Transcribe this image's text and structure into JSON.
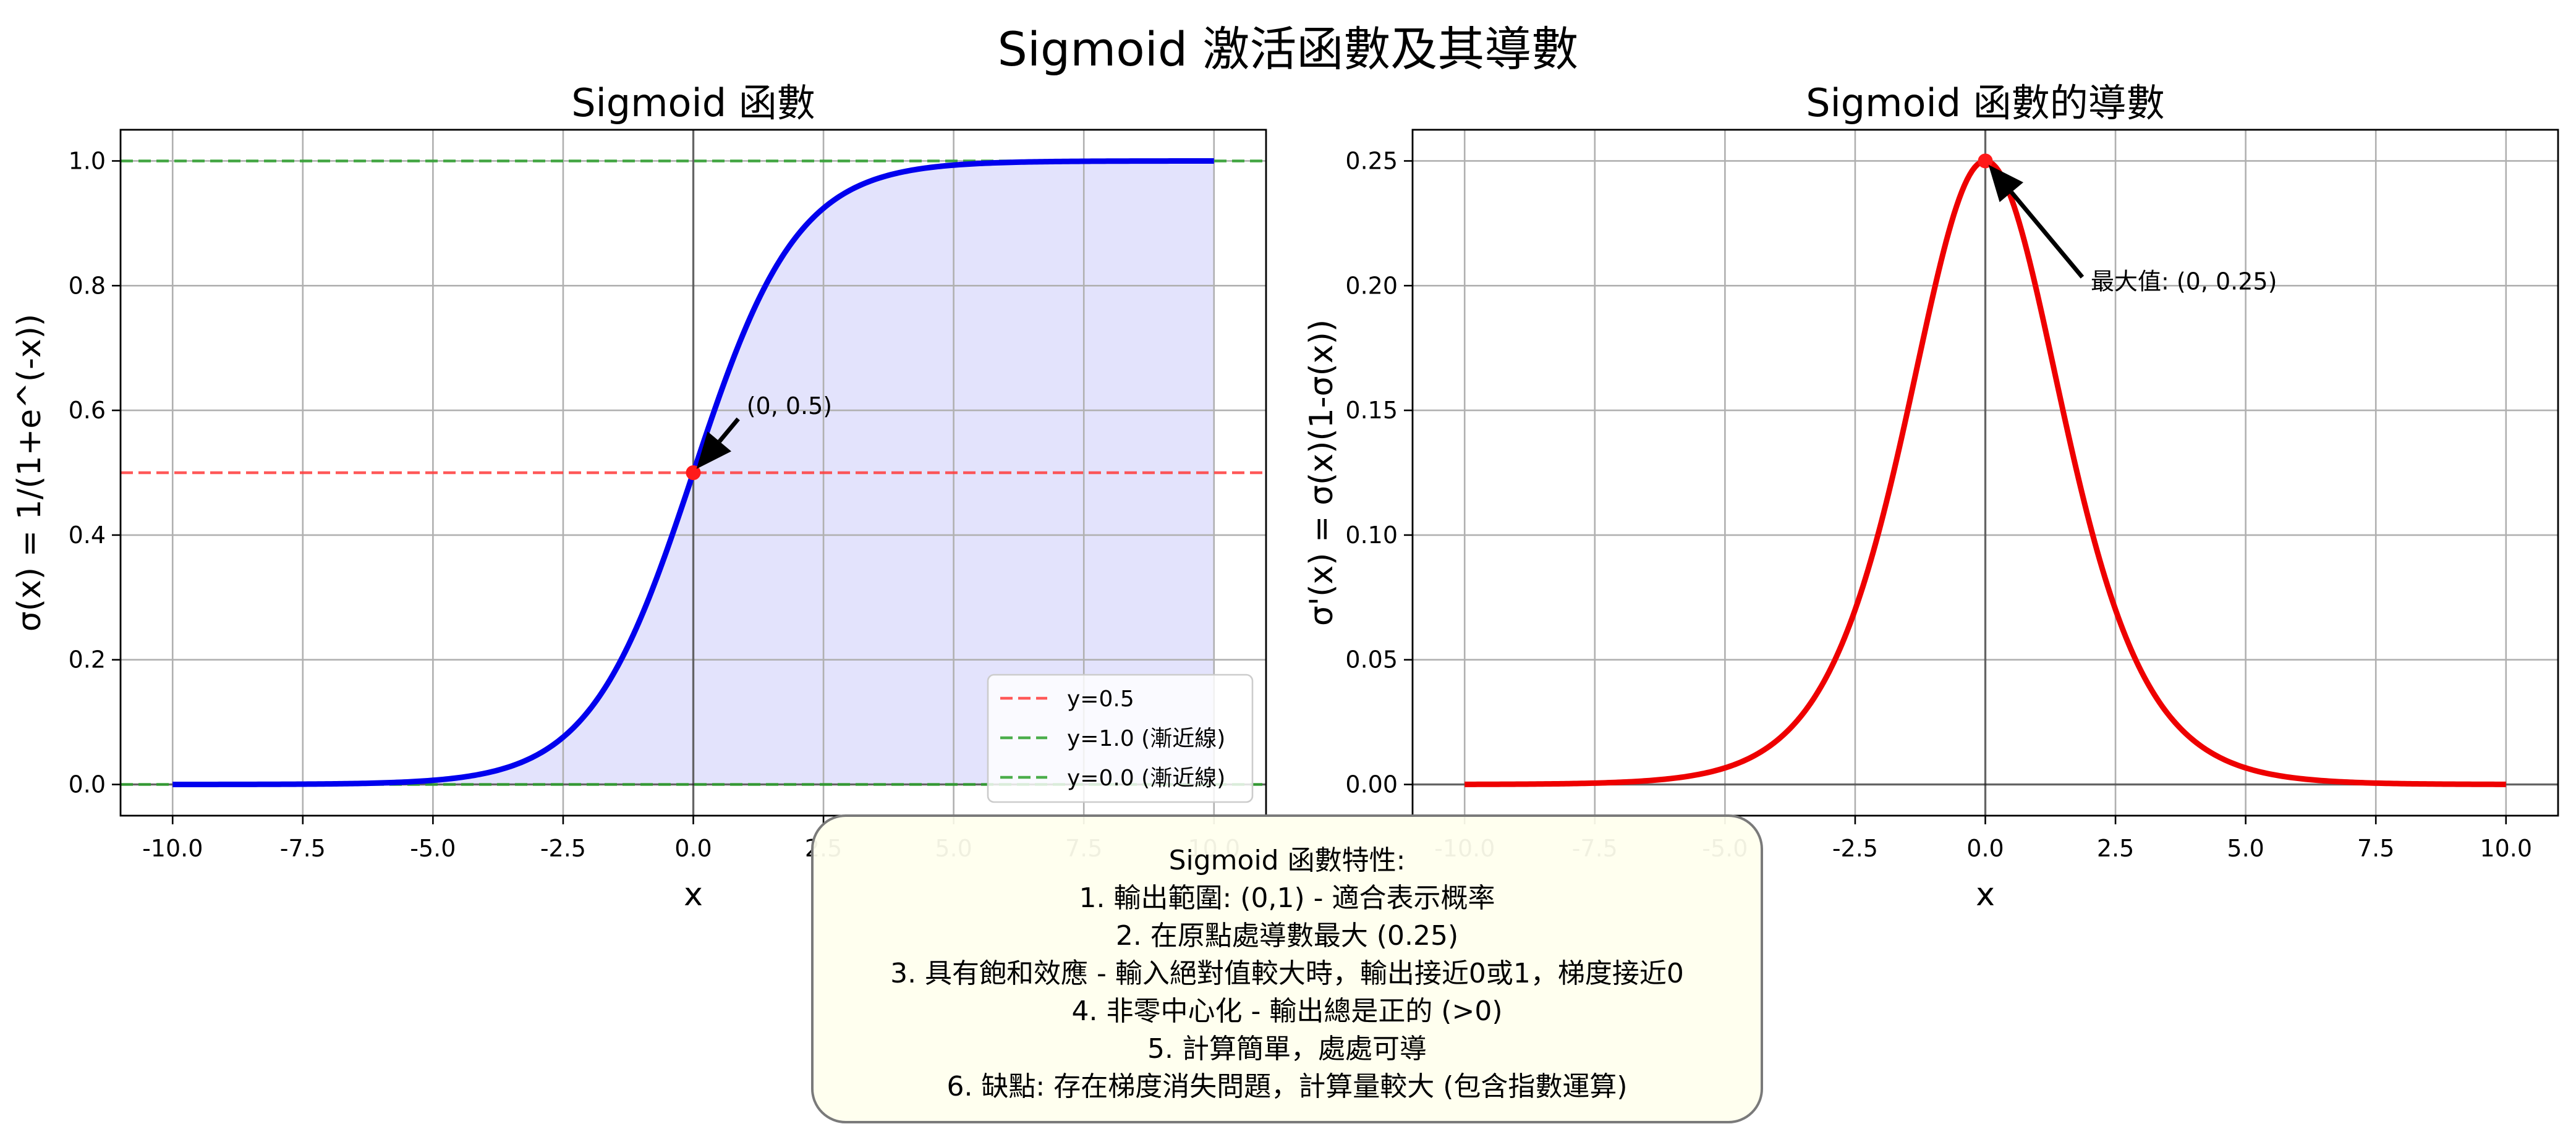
{
  "suptitle": "Sigmoid 激活函數及其導數",
  "colors": {
    "sigmoid_line": "#0000ee",
    "sigmoid_fill": "#e3e3fc",
    "derivative_line": "#ee0000",
    "ref_red": "#ff3b3b",
    "ref_green": "#2ca02c",
    "grid": "#b0b0b0",
    "info_bg": "#fffff0"
  },
  "chart_data": [
    {
      "type": "line",
      "title": "Sigmoid 函數",
      "xlabel": "x",
      "ylabel": "σ(x) = 1/(1+e^(-x))",
      "xlim": [
        -11,
        11
      ],
      "ylim": [
        -0.05,
        1.05
      ],
      "x_ticks": [
        -10,
        -7.5,
        -5,
        -2.5,
        0,
        2.5,
        5,
        7.5,
        10
      ],
      "x_tick_labels": [
        "-10.0",
        "-7.5",
        "-5.0",
        "-2.5",
        "0.0",
        "2.5",
        "5.0",
        "7.5",
        "10.0"
      ],
      "y_ticks": [
        0,
        0.2,
        0.4,
        0.6,
        0.8,
        1.0
      ],
      "y_tick_labels": [
        "0.0",
        "0.2",
        "0.4",
        "0.6",
        "0.8",
        "1.0"
      ],
      "grid": true,
      "legend_position": "lower-right",
      "function": "sigmoid",
      "x_range": [
        -10,
        10
      ],
      "series": [
        {
          "name": "",
          "role": "curve",
          "color": "#0000ee",
          "fill": true
        },
        {
          "name": "y=0.5",
          "role": "hline",
          "y": 0.5,
          "color": "#ff3b3b",
          "dash": true
        },
        {
          "name": "y=1.0 (漸近線)",
          "role": "hline",
          "y": 1.0,
          "color": "#2ca02c",
          "dash": true
        },
        {
          "name": "y=0.0 (漸近線)",
          "role": "hline",
          "y": 0.0,
          "color": "#2ca02c",
          "dash": true
        }
      ],
      "point": {
        "x": 0,
        "y": 0.5
      },
      "annotation": {
        "text": "(0, 0.5)",
        "point": [
          0,
          0.5
        ],
        "text_at": [
          1,
          0.6
        ]
      }
    },
    {
      "type": "line",
      "title": "Sigmoid 函數的導數",
      "xlabel": "x",
      "ylabel": "σ'(x) = σ(x)(1-σ(x))",
      "xlim": [
        -11,
        11
      ],
      "ylim": [
        -0.0125,
        0.2625
      ],
      "x_ticks": [
        -10,
        -7.5,
        -5,
        -2.5,
        0,
        2.5,
        5,
        7.5,
        10
      ],
      "x_tick_labels": [
        "-10.0",
        "-7.5",
        "-5.0",
        "-2.5",
        "0.0",
        "2.5",
        "5.0",
        "7.5",
        "10.0"
      ],
      "y_ticks": [
        0,
        0.05,
        0.1,
        0.15,
        0.2,
        0.25
      ],
      "y_tick_labels": [
        "0.00",
        "0.05",
        "0.10",
        "0.15",
        "0.20",
        "0.25"
      ],
      "grid": true,
      "function": "sigmoid_derivative",
      "x_range": [
        -10,
        10
      ],
      "series": [
        {
          "name": "",
          "role": "curve",
          "color": "#ee0000",
          "fill": false
        }
      ],
      "point": {
        "x": 0,
        "y": 0.25
      },
      "annotation": {
        "text": "最大值: (0, 0.25)",
        "point": [
          0,
          0.25
        ],
        "text_at": [
          2,
          0.2
        ]
      }
    }
  ],
  "info": {
    "title": "Sigmoid 函數特性:",
    "lines": [
      "1. 輸出範圍: (0,1) - 適合表示概率",
      "2. 在原點處導數最大 (0.25)",
      "3. 具有飽和效應 - 輸入絕對值較大時，輸出接近0或1，梯度接近0",
      "4. 非零中心化 - 輸出總是正的 (>0)",
      "5. 計算簡單，處處可導",
      "6. 缺點: 存在梯度消失問題，計算量較大 (包含指數運算)"
    ]
  }
}
